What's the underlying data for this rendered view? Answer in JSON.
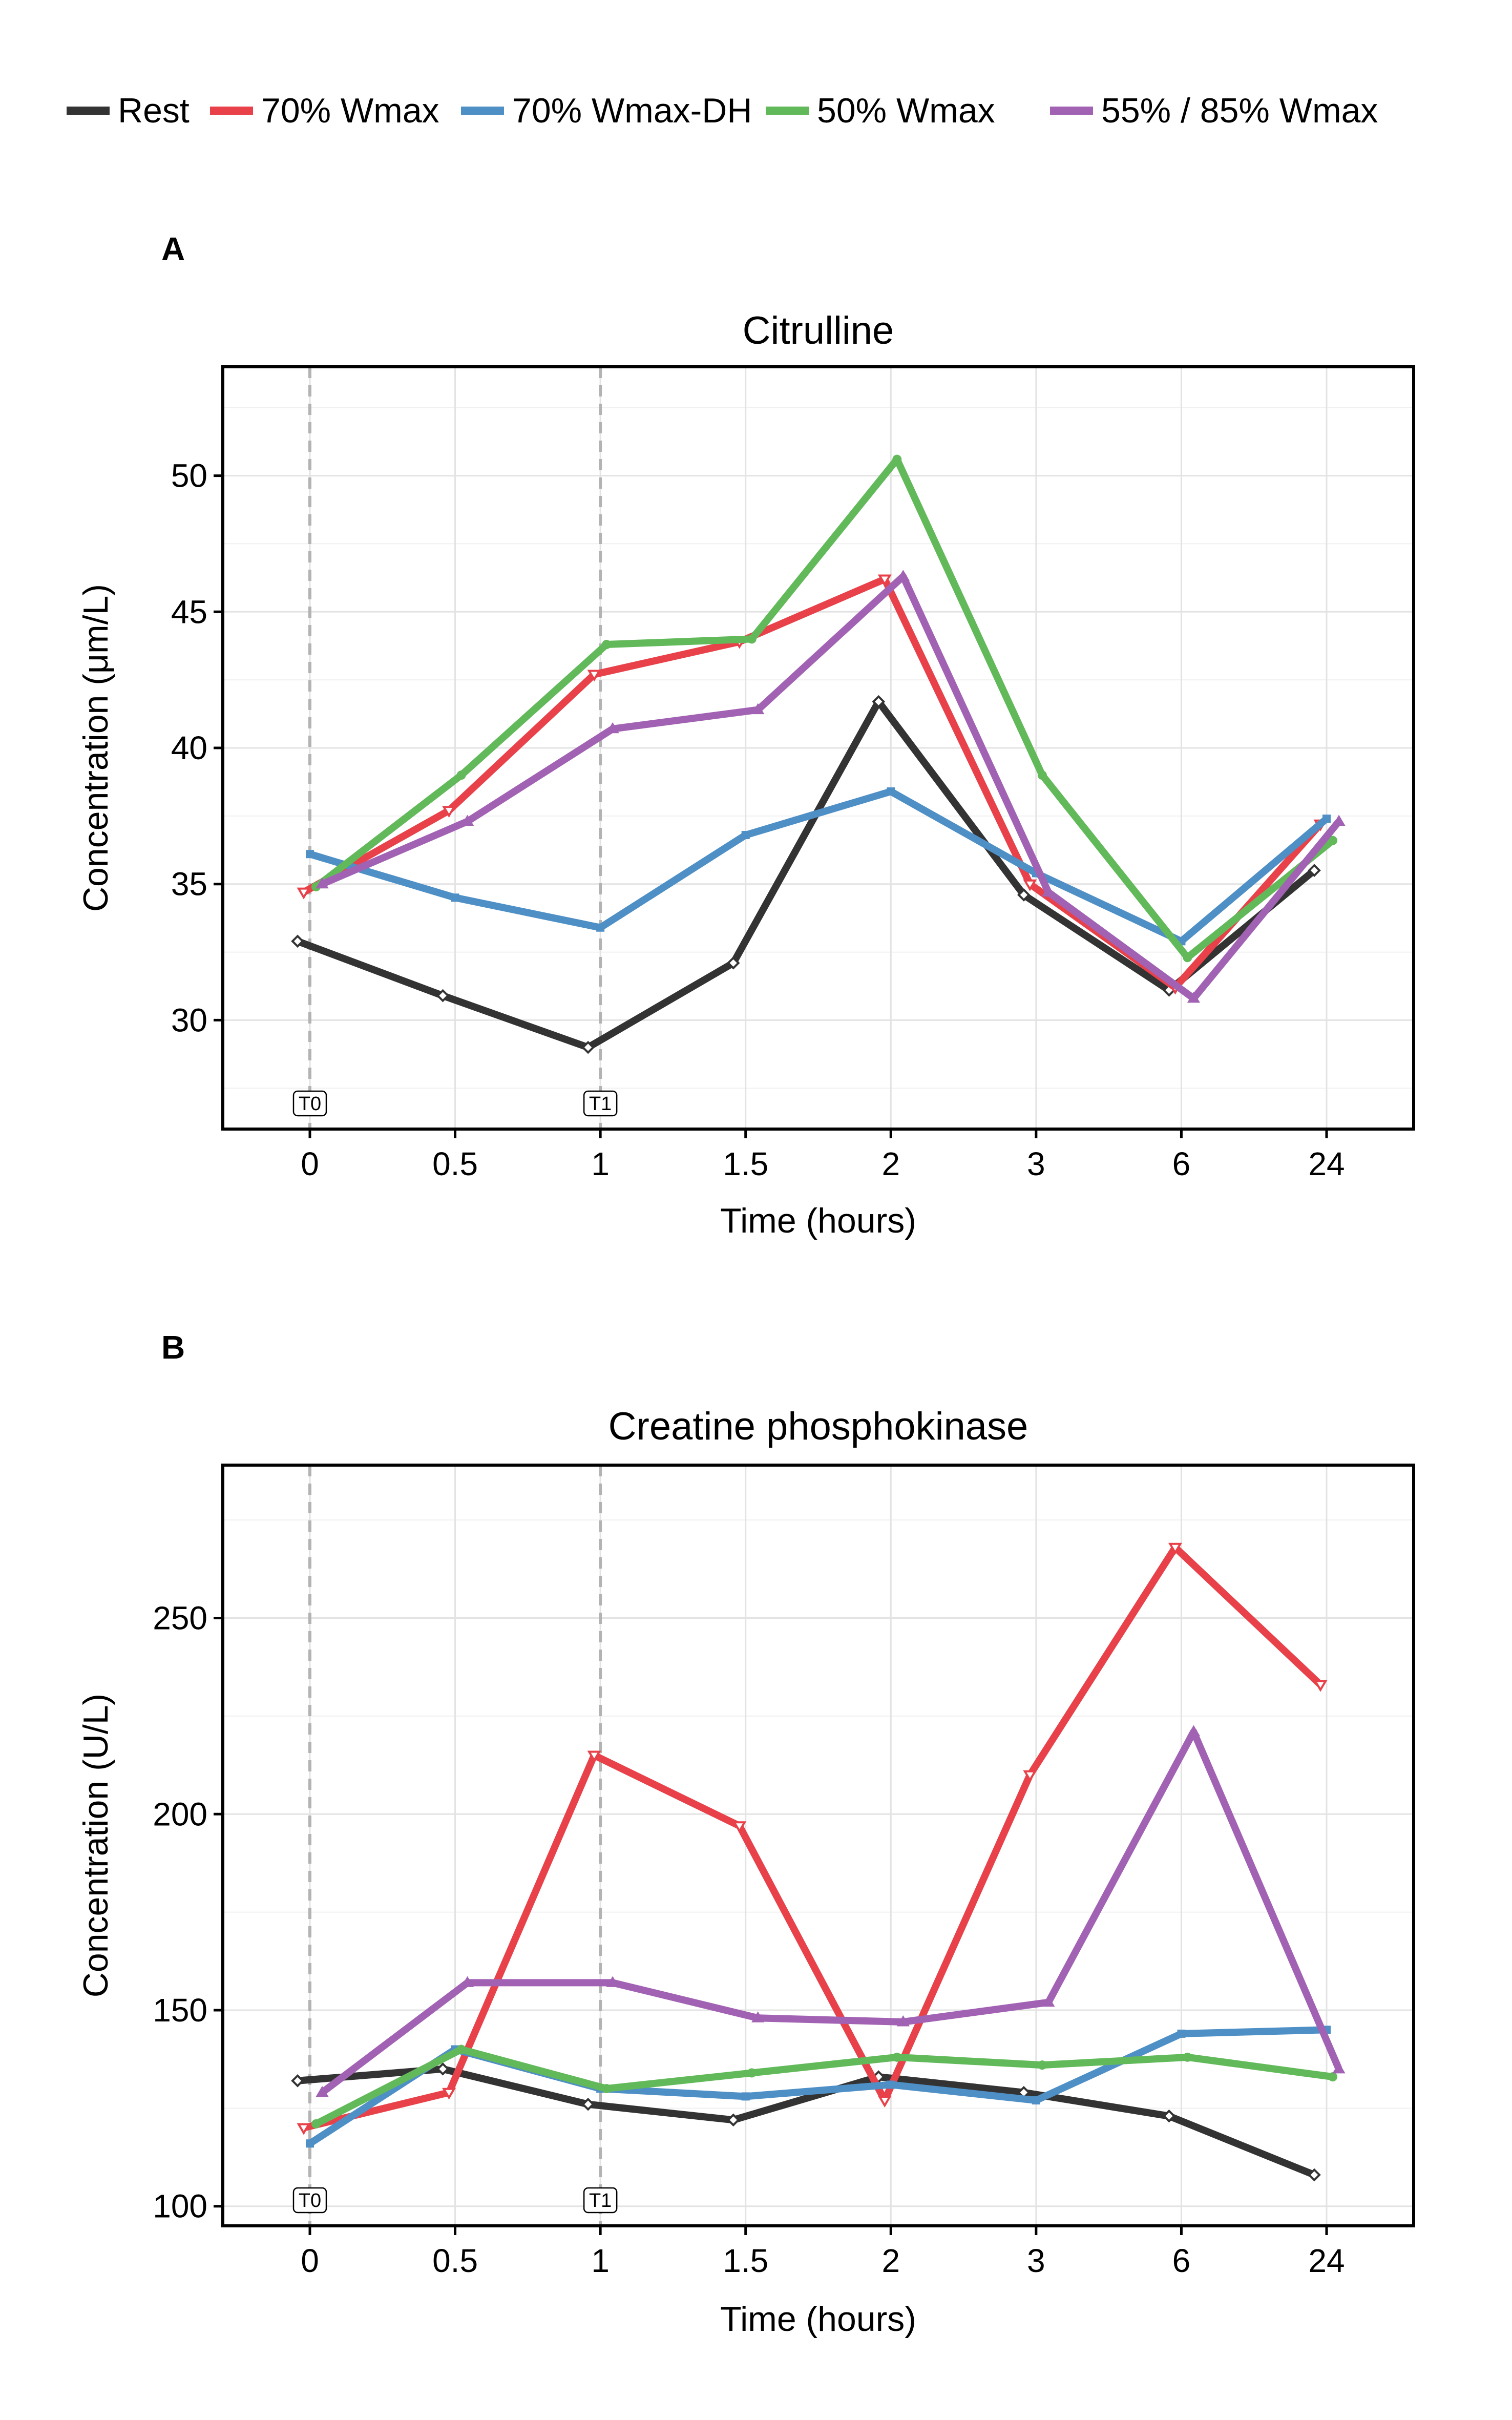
{
  "legend": [
    {
      "label": "Rest",
      "color": "#333333"
    },
    {
      "label": "70% Wmax",
      "color": "#E8414A"
    },
    {
      "label": "70% Wmax-DH",
      "color": "#4E8FC6"
    },
    {
      "label": "50% Wmax",
      "color": "#62B95A"
    },
    {
      "label": "55% / 85% Wmax",
      "color": "#A262B3"
    }
  ],
  "chart_data": [
    {
      "type": "line",
      "panel": "A",
      "title": "Citrulline",
      "xlabel": "Time (hours)",
      "ylabel": "Concentration (μm/L)",
      "categories": [
        "0",
        "0.5",
        "1",
        "1.5",
        "2",
        "3",
        "6",
        "24"
      ],
      "ylim": [
        26,
        54
      ],
      "yticks": [
        30,
        35,
        40,
        45,
        50
      ],
      "grid": true,
      "vlines": [
        {
          "at": "0",
          "label": "T0"
        },
        {
          "at": "1",
          "label": "T1"
        }
      ],
      "series": [
        {
          "name": "Rest",
          "color": "#333333",
          "values": [
            32.9,
            30.9,
            29.0,
            32.1,
            41.7,
            34.6,
            31.1,
            35.5
          ]
        },
        {
          "name": "70% Wmax",
          "color": "#E8414A",
          "values": [
            34.7,
            37.7,
            42.7,
            43.9,
            46.2,
            35.0,
            31.2,
            37.2
          ]
        },
        {
          "name": "70% Wmax-DH",
          "color": "#4E8FC6",
          "values": [
            36.1,
            34.5,
            33.4,
            36.8,
            38.4,
            35.4,
            32.9,
            37.4
          ]
        },
        {
          "name": "50% Wmax",
          "color": "#62B95A",
          "values": [
            34.9,
            39.0,
            43.8,
            44.0,
            50.6,
            39.0,
            32.3,
            36.6
          ]
        },
        {
          "name": "55% / 85% Wmax",
          "color": "#A262B3",
          "values": [
            35.0,
            37.3,
            40.7,
            41.4,
            46.3,
            34.7,
            30.8,
            37.3
          ]
        }
      ]
    },
    {
      "type": "line",
      "panel": "B",
      "title": "Creatine phosphokinase",
      "xlabel": "Time (hours)",
      "ylabel": "Concentration (U/L)",
      "categories": [
        "0",
        "0.5",
        "1",
        "1.5",
        "2",
        "3",
        "6",
        "24"
      ],
      "ylim": [
        95,
        289
      ],
      "yticks": [
        100,
        150,
        200,
        250
      ],
      "grid": true,
      "vlines": [
        {
          "at": "0",
          "label": "T0"
        },
        {
          "at": "1",
          "label": "T1"
        }
      ],
      "series": [
        {
          "name": "Rest",
          "color": "#333333",
          "values": [
            132,
            135,
            126,
            122,
            133,
            129,
            123,
            108
          ]
        },
        {
          "name": "70% Wmax",
          "color": "#E8414A",
          "values": [
            120,
            129,
            215,
            197,
            127,
            210,
            268,
            233
          ]
        },
        {
          "name": "70% Wmax-DH",
          "color": "#4E8FC6",
          "values": [
            116,
            140,
            130,
            128,
            131,
            127,
            144,
            145
          ]
        },
        {
          "name": "50% Wmax",
          "color": "#62B95A",
          "values": [
            121,
            140,
            130,
            134,
            138,
            136,
            138,
            133
          ]
        },
        {
          "name": "55% / 85% Wmax",
          "color": "#A262B3",
          "values": [
            129,
            157,
            157,
            148,
            147,
            152,
            221,
            135
          ]
        }
      ]
    }
  ]
}
